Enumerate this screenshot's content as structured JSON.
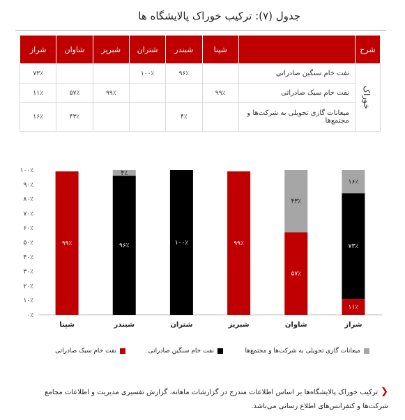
{
  "title": "جدول (۷): ترکیب خوراک پالایشگاه ها",
  "table": {
    "header_group": "شرح",
    "header_desc": "",
    "columns": [
      "شپنا",
      "شبندر",
      "شتران",
      "شبریز",
      "شاوان",
      "شراز"
    ],
    "group_label": "خوراک",
    "rows": [
      {
        "label": "نفت خام سنگین صادراتی",
        "cells": [
          "",
          "۹۶٪",
          "۱۰۰٪",
          "",
          "",
          "۷۳٪"
        ]
      },
      {
        "label": "نفت خام سبک صادراتی",
        "cells": [
          "۹۹٪",
          "",
          "",
          "۹۹٪",
          "۵۷٪",
          "۱۱٪"
        ]
      },
      {
        "label": "میعانات گازی تحویلی به شرکت‌ها و مجتمع‌ها",
        "cells": [
          "",
          "۴٪",
          "",
          "",
          "۴۳٪",
          "۱۶٪"
        ]
      }
    ]
  },
  "chart_data": {
    "type": "bar",
    "stacked": true,
    "categories": [
      "شپنا",
      "شبندر",
      "شتران",
      "شبریز",
      "شاوان",
      "شراز"
    ],
    "series": [
      {
        "name": "نفت خام سبک صادراتی",
        "color": "#c00000",
        "values": [
          99,
          0,
          0,
          99,
          57,
          11
        ],
        "labels": [
          "۹۹٪",
          "",
          "",
          "۹۹٪",
          "۵۷٪",
          "۱۱٪"
        ]
      },
      {
        "name": "نفت خام سنگین صادراتی",
        "color": "#000000",
        "values": [
          0,
          96,
          100,
          0,
          0,
          73
        ],
        "labels": [
          "",
          "۹۶٪",
          "۱۰۰٪",
          "",
          "",
          "۷۳٪"
        ]
      },
      {
        "name": "میعانات گازی تحویلی به شرکت‌ها و مجتمع‌ها",
        "color": "#a6a6a6",
        "values": [
          0,
          4,
          0,
          0,
          43,
          16
        ],
        "labels": [
          "",
          "۴٪",
          "",
          "",
          "۴۳٪",
          "۱۶٪"
        ]
      }
    ],
    "yticks": [
      "۰٪",
      "۱۰٪",
      "۲۰٪",
      "۳۰٪",
      "۴۰٪",
      "۵۰٪",
      "۶۰٪",
      "۷۰٪",
      "۸۰٪",
      "۹۰٪",
      "۱۰۰٪"
    ],
    "ylim": [
      0,
      100
    ],
    "grid": false,
    "legend": "bottom"
  },
  "note": "ترکیب خوراک پالایشگاه‌ها بر اساس اطلاعات مندرج در گزارشات ماهانه، گزارش تفسیری مدیریت و اطلاعات مجامع شرکت‌ها و کنفرانس‌های اطلاع رسانی می‌باشد."
}
